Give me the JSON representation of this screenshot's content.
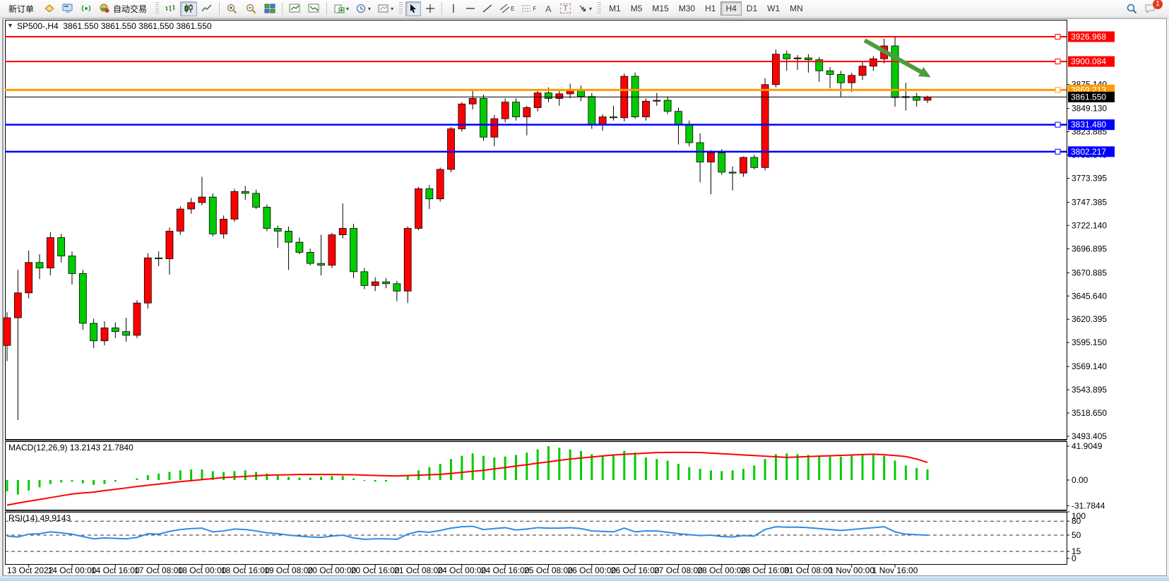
{
  "toolbar": {
    "new_order_label": "新订单",
    "auto_trading_label": "自动交易",
    "timeframes": [
      "M1",
      "M5",
      "M15",
      "M30",
      "H1",
      "H4",
      "D1",
      "W1",
      "MN"
    ],
    "active_timeframe": "H4",
    "tool_labels": {
      "text_a": "A",
      "text_box": "T",
      "channel": "E",
      "fibo": "F"
    },
    "notifications_badge": "1"
  },
  "chart_header": {
    "dropdown_glyph": "▼",
    "symbol": "SP500-,H4",
    "ohlc": "3861.550 3861.550 3861.550 3861.550"
  },
  "indicators": {
    "macd_label": "MACD(12,26,9) 13.2143 21.7840",
    "rsi_label": "RSI(14) 49.9143"
  },
  "chart_data": {
    "type": "candlestick",
    "symbol": "SP500-",
    "timeframe": "H4",
    "ylim": [
      3490.34,
      3945.35
    ],
    "price_ticks": [
      "3875.140",
      "3849.130",
      "3823.885",
      "3798.640",
      "3773.395",
      "3747.385",
      "3722.140",
      "3696.895",
      "3670.885",
      "3645.640",
      "3620.395",
      "3595.150",
      "3569.140",
      "3543.895",
      "3518.650",
      "3493.405"
    ],
    "time_labels": [
      "13 Oct 2022",
      "14 Oct 00:00",
      "14 Oct 16:00",
      "17 Oct 08:00",
      "18 Oct 00:00",
      "18 Oct 16:00",
      "19 Oct 08:00",
      "20 Oct 00:00",
      "20 Oct 16:00",
      "21 Oct 08:00",
      "24 Oct 00:00",
      "24 Oct 16:00",
      "25 Oct 08:00",
      "26 Oct 00:00",
      "26 Oct 16:00",
      "27 Oct 08:00",
      "28 Oct 00:00",
      "28 Oct 16:00",
      "31 Oct 08:00",
      "1 Nov 00:00",
      "1 Nov 16:00"
    ],
    "time_label_start_index": 2,
    "time_label_step": 4,
    "candles": [
      [
        3592,
        3628,
        3575,
        3622
      ],
      [
        3622,
        3674,
        3511,
        3649
      ],
      [
        3649,
        3695,
        3643,
        3682
      ],
      [
        3682,
        3691,
        3664,
        3676
      ],
      [
        3676,
        3715,
        3668,
        3709
      ],
      [
        3709,
        3713,
        3682,
        3689
      ],
      [
        3689,
        3694,
        3658,
        3670
      ],
      [
        3670,
        3674,
        3609,
        3616
      ],
      [
        3616,
        3621,
        3589,
        3597
      ],
      [
        3597,
        3618,
        3592,
        3611
      ],
      [
        3611,
        3617,
        3600,
        3607
      ],
      [
        3607,
        3622,
        3596,
        3603
      ],
      [
        3603,
        3641,
        3600,
        3638
      ],
      [
        3638,
        3692,
        3632,
        3687
      ],
      [
        3687,
        3694,
        3678,
        3686
      ],
      [
        3686,
        3720,
        3669,
        3716
      ],
      [
        3716,
        3743,
        3712,
        3740
      ],
      [
        3740,
        3752,
        3735,
        3747
      ],
      [
        3747,
        3775,
        3744,
        3753
      ],
      [
        3753,
        3757,
        3710,
        3713
      ],
      [
        3713,
        3733,
        3708,
        3729
      ],
      [
        3729,
        3762,
        3726,
        3759
      ],
      [
        3759,
        3765,
        3750,
        3757
      ],
      [
        3757,
        3761,
        3740,
        3742
      ],
      [
        3742,
        3745,
        3716,
        3719
      ],
      [
        3719,
        3722,
        3698,
        3716
      ],
      [
        3716,
        3721,
        3674,
        3704
      ],
      [
        3704,
        3709,
        3691,
        3693
      ],
      [
        3693,
        3697,
        3679,
        3681
      ],
      [
        3681,
        3712,
        3668,
        3679
      ],
      [
        3679,
        3714,
        3676,
        3712
      ],
      [
        3712,
        3746,
        3708,
        3719
      ],
      [
        3719,
        3724,
        3665,
        3672
      ],
      [
        3672,
        3676,
        3653,
        3657
      ],
      [
        3657,
        3666,
        3651,
        3661
      ],
      [
        3661,
        3665,
        3654,
        3659
      ],
      [
        3659,
        3662,
        3640,
        3651
      ],
      [
        3651,
        3721,
        3638,
        3719
      ],
      [
        3719,
        3764,
        3717,
        3762
      ],
      [
        3762,
        3766,
        3740,
        3751
      ],
      [
        3751,
        3785,
        3748,
        3783
      ],
      [
        3783,
        3829,
        3780,
        3827
      ],
      [
        3827,
        3856,
        3824,
        3854
      ],
      [
        3854,
        3869,
        3848,
        3860
      ],
      [
        3860,
        3864,
        3814,
        3818
      ],
      [
        3818,
        3842,
        3808,
        3838
      ],
      [
        3838,
        3860,
        3834,
        3856
      ],
      [
        3856,
        3860,
        3836,
        3840
      ],
      [
        3840,
        3852,
        3820,
        3850
      ],
      [
        3850,
        3870,
        3846,
        3866
      ],
      [
        3866,
        3872,
        3856,
        3860
      ],
      [
        3860,
        3868,
        3852,
        3865
      ],
      [
        3865,
        3876,
        3860,
        3870
      ],
      [
        3870,
        3874,
        3857,
        3862
      ],
      [
        3862,
        3866,
        3827,
        3832
      ],
      [
        3832,
        3843,
        3825,
        3840
      ],
      [
        3840,
        3852,
        3836,
        3839
      ],
      [
        3839,
        3887,
        3835,
        3884
      ],
      [
        3884,
        3888,
        3838,
        3840
      ],
      [
        3840,
        3860,
        3836,
        3857
      ],
      [
        3857,
        3866,
        3852,
        3858
      ],
      [
        3858,
        3862,
        3843,
        3846
      ],
      [
        3846,
        3850,
        3810,
        3832
      ],
      [
        3832,
        3836,
        3808,
        3812
      ],
      [
        3812,
        3822,
        3769,
        3791
      ],
      [
        3791,
        3804,
        3756,
        3801
      ],
      [
        3801,
        3805,
        3777,
        3780
      ],
      [
        3780,
        3786,
        3760,
        3779
      ],
      [
        3779,
        3797,
        3775,
        3796
      ],
      [
        3796,
        3799,
        3783,
        3785
      ],
      [
        3785,
        3882,
        3782,
        3875
      ],
      [
        3875,
        3913,
        3872,
        3908
      ],
      [
        3908,
        3912,
        3890,
        3903
      ],
      [
        3903,
        3907,
        3891,
        3904
      ],
      [
        3904,
        3908,
        3888,
        3902
      ],
      [
        3902,
        3905,
        3878,
        3890
      ],
      [
        3890,
        3894,
        3871,
        3886
      ],
      [
        3886,
        3890,
        3862,
        3877
      ],
      [
        3877,
        3888,
        3867,
        3885
      ],
      [
        3885,
        3900,
        3880,
        3895
      ],
      [
        3895,
        3906,
        3890,
        3903
      ],
      [
        3903,
        3925,
        3898,
        3917
      ],
      [
        3917,
        3926.97,
        3851,
        3861
      ],
      [
        3861,
        3877,
        3847,
        3862
      ],
      [
        3862,
        3866,
        3851,
        3858
      ],
      [
        3858,
        3863,
        3855,
        3861.55
      ]
    ],
    "hlines": [
      {
        "price": 3926.968,
        "label": "3926.968",
        "color": "#FF0000",
        "width": 2
      },
      {
        "price": 3900.084,
        "label": "3900.084",
        "color": "#FF0000",
        "width": 2
      },
      {
        "price": 3869.213,
        "label": "3869.213",
        "color": "#FF9C00",
        "width": 3
      },
      {
        "price": 3831.48,
        "label": "3831.480",
        "color": "#0000FF",
        "width": 2.5
      },
      {
        "price": 3802.217,
        "label": "3802.217",
        "color": "#0000FF",
        "width": 2.5
      }
    ],
    "bid": {
      "price": 3861.55,
      "label": "3861.550",
      "color": "#000000"
    },
    "arrow": {
      "from_bar": 79.2,
      "from_price": 3923,
      "to_bar": 85.3,
      "to_price": 3883,
      "color": "#4E9B40"
    },
    "macd": {
      "histogram": [
        -14,
        -18,
        -13,
        -9,
        -5,
        -3,
        -2,
        -4,
        -6,
        -5,
        -2,
        0,
        2,
        6,
        8,
        10,
        12,
        13,
        13,
        11,
        10,
        11,
        12,
        10,
        8,
        6,
        4,
        3,
        3,
        4,
        5,
        5,
        2,
        -1,
        -2,
        -2,
        0,
        6,
        12,
        16,
        20,
        26,
        30,
        33,
        30,
        28,
        29,
        31,
        34,
        38,
        41.9,
        40,
        38,
        36,
        32,
        30,
        31,
        36,
        34,
        28,
        26,
        24,
        20,
        16,
        14,
        12,
        11,
        12,
        14,
        18,
        26,
        32,
        33,
        32,
        31,
        30,
        29,
        29,
        30,
        31,
        32,
        30,
        24,
        18,
        15,
        13.2143
      ],
      "signal": [
        -31,
        -28.5,
        -26.2,
        -24,
        -21.8,
        -19.5,
        -17.3,
        -16,
        -15,
        -13,
        -11.5,
        -9.8,
        -8,
        -6.5,
        -5,
        -3.5,
        -2,
        -0.8,
        0.5,
        1.8,
        3,
        3.8,
        4.5,
        5.3,
        6,
        6.3,
        6.5,
        6.8,
        7,
        6.9,
        6.8,
        6.6,
        6.5,
        6.1,
        5.7,
        5.3,
        5,
        5.5,
        6,
        6.5,
        7,
        8.2,
        9.5,
        10.8,
        12,
        13.8,
        15.5,
        17.3,
        19,
        20.8,
        22.5,
        24.3,
        26,
        27.3,
        28.5,
        29.8,
        31,
        31.8,
        32.5,
        33.3,
        34,
        34.1,
        34.2,
        34.1,
        34,
        33.3,
        32.5,
        31.8,
        31,
        30.3,
        29.5,
        28.8,
        28,
        28.5,
        29,
        29.5,
        30,
        30.5,
        31,
        31.5,
        32,
        31.3,
        30.3,
        29,
        26,
        21.784
      ],
      "axis_labels": [
        {
          "value": 41.9049,
          "text": "41.9049"
        },
        {
          "value": 0,
          "text": "0.00"
        },
        {
          "value": -31.7844,
          "text": "-31.7844"
        }
      ],
      "ylim": [
        -36.7,
        48.0
      ],
      "hist_color": "#00CC00",
      "signal_color": "#FF0000"
    },
    "rsi": {
      "values": [
        48,
        46,
        52,
        53,
        57,
        55,
        52,
        47,
        42,
        44,
        43,
        42,
        45,
        53,
        52,
        58,
        62,
        64,
        65,
        57,
        59,
        63,
        62,
        59,
        55,
        53,
        50,
        48,
        46,
        45,
        48,
        50,
        44,
        41,
        42,
        42,
        41,
        52,
        58,
        56,
        60,
        65,
        68,
        69,
        62,
        64,
        66,
        61,
        63,
        66,
        65,
        65,
        66,
        64,
        59,
        58,
        57,
        65,
        57,
        59,
        59,
        56,
        53,
        51,
        49,
        50,
        47,
        46,
        49,
        48,
        62,
        68,
        67,
        67,
        66,
        64,
        62,
        60,
        62,
        64,
        66,
        68,
        57,
        52,
        51,
        49.91
      ],
      "levels": [
        80,
        50,
        15
      ],
      "axis_labels": [
        {
          "value": 100,
          "text": "100"
        },
        {
          "value": 80,
          "text": "80"
        },
        {
          "value": 50,
          "text": "50"
        },
        {
          "value": 15,
          "text": "15"
        },
        {
          "value": 0,
          "text": "0"
        }
      ],
      "ylim": [
        -12.1,
        100
      ],
      "color": "#2E8BE6"
    },
    "colors": {
      "up": "#FF0000",
      "down": "#00CC00",
      "wick": "#000000"
    }
  }
}
